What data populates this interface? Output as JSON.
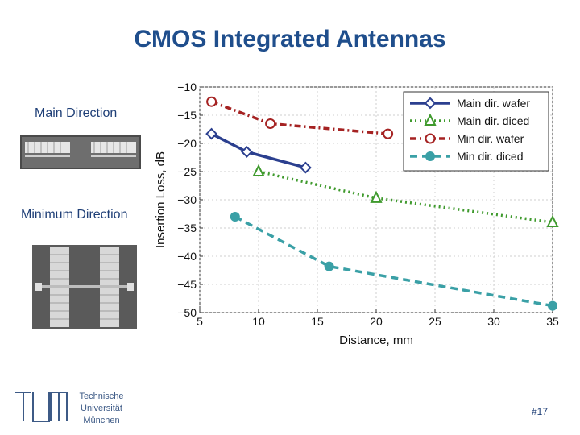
{
  "slide": {
    "title": "CMOS Integrated Antennas",
    "label_main": "Main Direction",
    "label_min": "Minimum Direction",
    "footer_org": [
      "Technische",
      "Universität",
      "München"
    ],
    "slide_number": "#17"
  },
  "colors": {
    "title": "#1f4e8c",
    "main_wafer": "#2b3f8f",
    "main_diced": "#3f9a2d",
    "min_wafer": "#a52222",
    "min_diced": "#3aa0a6"
  },
  "chart_data": {
    "type": "line",
    "title": "",
    "xlabel": "Distance, mm",
    "ylabel": "Insertion Loss, dB",
    "xlim": [
      5,
      35
    ],
    "ylim": [
      -50,
      -10
    ],
    "xticks": [
      5,
      10,
      15,
      20,
      25,
      30,
      35
    ],
    "yticks": [
      -10,
      -15,
      -20,
      -25,
      -30,
      -35,
      -40,
      -45,
      -50
    ],
    "grid": true,
    "legend_position": "top-right",
    "series": [
      {
        "name": "Main dir. wafer",
        "x": [
          6,
          9,
          14
        ],
        "y": [
          -18.3,
          -21.5,
          -24.3
        ],
        "style": "solid",
        "marker": "diamond",
        "color_key": "main_wafer"
      },
      {
        "name": "Main dir. diced",
        "x": [
          10,
          20,
          35
        ],
        "y": [
          -25,
          -29.7,
          -34
        ],
        "style": "dotted",
        "marker": "triangle",
        "color_key": "main_diced"
      },
      {
        "name": "Min dir. wafer",
        "x": [
          6,
          11,
          21
        ],
        "y": [
          -12.6,
          -16.5,
          -18.3
        ],
        "style": "dashdot",
        "marker": "circle-open",
        "color_key": "min_wafer"
      },
      {
        "name": "Min dir. diced",
        "x": [
          8,
          16,
          35
        ],
        "y": [
          -33,
          -41.8,
          -48.8
        ],
        "style": "dashed",
        "marker": "circle-filled",
        "color_key": "min_diced"
      }
    ]
  }
}
